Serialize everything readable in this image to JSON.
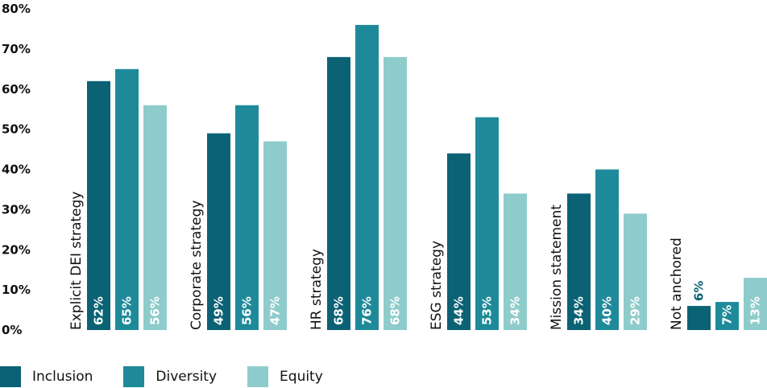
{
  "chart_data": {
    "type": "bar",
    "categories": [
      "Explicit DEI strategy",
      "Corporate strategy",
      "HR strategy",
      "ESG strategy",
      "Mission statement",
      "Not anchored"
    ],
    "series": [
      {
        "name": "Inclusion",
        "values": [
          62,
          49,
          68,
          44,
          34,
          6
        ],
        "labels": [
          "62%",
          "49%",
          "68%",
          "44%",
          "34%",
          "6%"
        ],
        "color": "#0b6274"
      },
      {
        "name": "Diversity",
        "values": [
          65,
          56,
          76,
          53,
          40,
          7
        ],
        "labels": [
          "65%",
          "56%",
          "76%",
          "53%",
          "40%",
          "7%"
        ],
        "color": "#1e8a99"
      },
      {
        "name": "Equity",
        "values": [
          56,
          47,
          68,
          34,
          29,
          13
        ],
        "labels": [
          "56%",
          "47%",
          "68%",
          "34%",
          "29%",
          "13%"
        ],
        "color": "#8ecccb"
      }
    ],
    "yticks": [
      0,
      10,
      20,
      30,
      40,
      50,
      60,
      70,
      80
    ],
    "ytick_labels": [
      "0%",
      "10%",
      "20%",
      "30%",
      "40%",
      "50%",
      "60%",
      "70%",
      "80%"
    ],
    "ylim": [
      0,
      80
    ],
    "grid": false,
    "legend_position": "bottom-left",
    "xlabel": "",
    "ylabel": "",
    "title": ""
  }
}
